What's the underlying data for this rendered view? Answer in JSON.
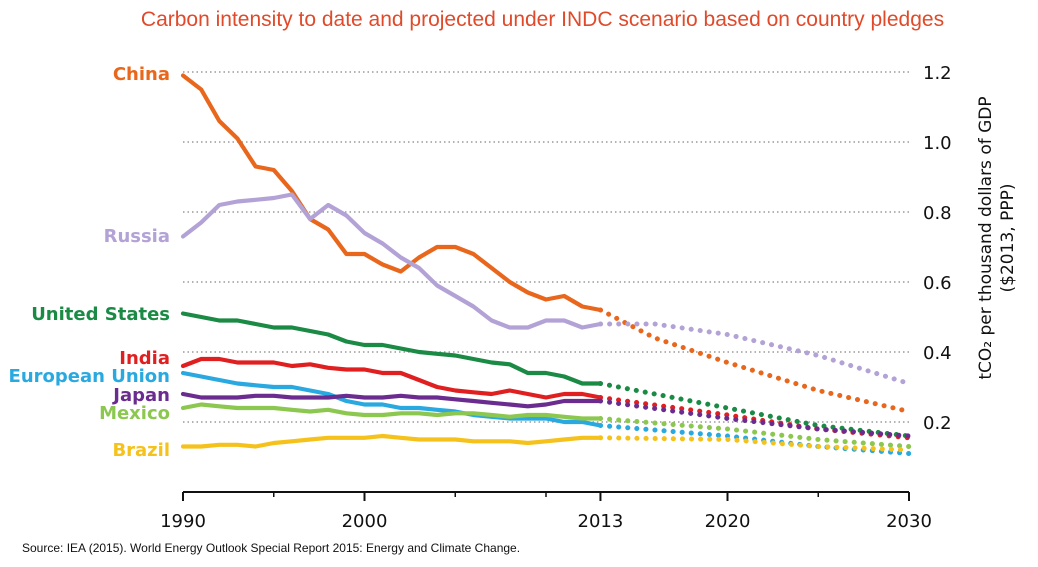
{
  "header": {
    "title": "Carbon intensity to date and projected under INDC scenario based on country pledges"
  },
  "footer": {
    "source": "Source: IEA (2015). World Energy Outlook Special Report 2015: Energy and Climate Change."
  },
  "chart_data": {
    "type": "line",
    "title": "Carbon intensity to date and projected under INDC scenario based on country pledges",
    "xlabel": "",
    "ylabel_line1": "tCO₂ per thousand dollars of GDP",
    "ylabel_line2": "($2013, PPP)",
    "xlim": [
      1990,
      2030
    ],
    "ylim": [
      0,
      1.2
    ],
    "x_ticks": [
      1990,
      2000,
      2013,
      2020,
      2030
    ],
    "x_minor_ticks": [
      1995,
      2005,
      2010,
      2025
    ],
    "y_ticks": [
      0.2,
      0.4,
      0.6,
      0.8,
      1.0,
      1.2
    ],
    "y_tick_labels": [
      "0.2",
      "0.4",
      "0.6",
      "0.8",
      "1.0",
      "1.2"
    ],
    "grid": true,
    "historical_style": "solid",
    "projection_style": "dotted",
    "series": [
      {
        "name": "China",
        "color": "#e8671c",
        "historical": {
          "x": [
            1990,
            1991,
            1992,
            1993,
            1994,
            1995,
            1996,
            1997,
            1998,
            1999,
            2000,
            2001,
            2002,
            2003,
            2004,
            2005,
            2006,
            2007,
            2008,
            2009,
            2010,
            2011,
            2012,
            2013
          ],
          "y": [
            1.19,
            1.15,
            1.06,
            1.01,
            0.93,
            0.92,
            0.86,
            0.78,
            0.75,
            0.68,
            0.68,
            0.65,
            0.63,
            0.67,
            0.7,
            0.7,
            0.68,
            0.64,
            0.6,
            0.57,
            0.55,
            0.56,
            0.53,
            0.52
          ]
        },
        "projection": {
          "x": [
            2013,
            2016,
            2020,
            2025,
            2030
          ],
          "y": [
            0.52,
            0.44,
            0.37,
            0.29,
            0.23
          ]
        }
      },
      {
        "name": "Russia",
        "color": "#b3a2d6",
        "historical": {
          "x": [
            1990,
            1991,
            1992,
            1993,
            1994,
            1995,
            1996,
            1997,
            1998,
            1999,
            2000,
            2001,
            2002,
            2003,
            2004,
            2005,
            2006,
            2007,
            2008,
            2009,
            2010,
            2011,
            2012,
            2013
          ],
          "y": [
            0.73,
            0.77,
            0.82,
            0.83,
            0.835,
            0.84,
            0.85,
            0.78,
            0.82,
            0.79,
            0.74,
            0.71,
            0.67,
            0.64,
            0.59,
            0.56,
            0.53,
            0.49,
            0.47,
            0.47,
            0.49,
            0.49,
            0.47,
            0.48
          ]
        },
        "projection": {
          "x": [
            2013,
            2016,
            2020,
            2025,
            2030
          ],
          "y": [
            0.48,
            0.48,
            0.45,
            0.39,
            0.31
          ]
        }
      },
      {
        "name": "United States",
        "color": "#1a8a45",
        "historical": {
          "x": [
            1990,
            1991,
            1992,
            1993,
            1994,
            1995,
            1996,
            1997,
            1998,
            1999,
            2000,
            2001,
            2002,
            2003,
            2004,
            2005,
            2006,
            2007,
            2008,
            2009,
            2010,
            2011,
            2012,
            2013
          ],
          "y": [
            0.51,
            0.5,
            0.49,
            0.49,
            0.48,
            0.47,
            0.47,
            0.46,
            0.45,
            0.43,
            0.42,
            0.42,
            0.41,
            0.4,
            0.395,
            0.39,
            0.38,
            0.37,
            0.365,
            0.34,
            0.34,
            0.33,
            0.31,
            0.31
          ]
        },
        "projection": {
          "x": [
            2013,
            2020,
            2025,
            2030
          ],
          "y": [
            0.31,
            0.24,
            0.19,
            0.16
          ]
        }
      },
      {
        "name": "India",
        "color": "#e02020",
        "historical": {
          "x": [
            1990,
            1991,
            1992,
            1993,
            1994,
            1995,
            1996,
            1997,
            1998,
            1999,
            2000,
            2001,
            2002,
            2003,
            2004,
            2005,
            2006,
            2007,
            2008,
            2009,
            2010,
            2011,
            2012,
            2013
          ],
          "y": [
            0.36,
            0.38,
            0.38,
            0.37,
            0.37,
            0.37,
            0.36,
            0.365,
            0.355,
            0.35,
            0.35,
            0.34,
            0.34,
            0.32,
            0.3,
            0.29,
            0.285,
            0.28,
            0.29,
            0.28,
            0.27,
            0.28,
            0.28,
            0.27
          ]
        },
        "projection": {
          "x": [
            2013,
            2020,
            2025,
            2030
          ],
          "y": [
            0.27,
            0.22,
            0.18,
            0.155
          ]
        }
      },
      {
        "name": "European Union",
        "color": "#29a9e0",
        "historical": {
          "x": [
            1990,
            1991,
            1992,
            1993,
            1994,
            1995,
            1996,
            1997,
            1998,
            1999,
            2000,
            2001,
            2002,
            2003,
            2004,
            2005,
            2006,
            2007,
            2008,
            2009,
            2010,
            2011,
            2012,
            2013
          ],
          "y": [
            0.34,
            0.33,
            0.32,
            0.31,
            0.305,
            0.3,
            0.3,
            0.29,
            0.28,
            0.26,
            0.25,
            0.25,
            0.24,
            0.24,
            0.235,
            0.23,
            0.22,
            0.215,
            0.21,
            0.21,
            0.21,
            0.2,
            0.2,
            0.19
          ]
        },
        "projection": {
          "x": [
            2013,
            2020,
            2025,
            2030
          ],
          "y": [
            0.19,
            0.16,
            0.13,
            0.11
          ]
        }
      },
      {
        "name": "Japan",
        "color": "#6a2d8f",
        "historical": {
          "x": [
            1990,
            1991,
            1992,
            1993,
            1994,
            1995,
            1996,
            1997,
            1998,
            1999,
            2000,
            2001,
            2002,
            2003,
            2004,
            2005,
            2006,
            2007,
            2008,
            2009,
            2010,
            2011,
            2012,
            2013
          ],
          "y": [
            0.28,
            0.27,
            0.27,
            0.27,
            0.275,
            0.275,
            0.27,
            0.27,
            0.27,
            0.275,
            0.27,
            0.27,
            0.275,
            0.27,
            0.27,
            0.265,
            0.26,
            0.255,
            0.25,
            0.245,
            0.25,
            0.26,
            0.26,
            0.26
          ]
        },
        "projection": {
          "x": [
            2013,
            2020,
            2025,
            2030
          ],
          "y": [
            0.26,
            0.21,
            0.18,
            0.16
          ]
        }
      },
      {
        "name": "Mexico",
        "color": "#8cc74f",
        "historical": {
          "x": [
            1990,
            1991,
            1992,
            1993,
            1994,
            1995,
            1996,
            1997,
            1998,
            1999,
            2000,
            2001,
            2002,
            2003,
            2004,
            2005,
            2006,
            2007,
            2008,
            2009,
            2010,
            2011,
            2012,
            2013
          ],
          "y": [
            0.24,
            0.25,
            0.245,
            0.24,
            0.24,
            0.24,
            0.235,
            0.23,
            0.235,
            0.225,
            0.22,
            0.22,
            0.225,
            0.225,
            0.22,
            0.225,
            0.225,
            0.22,
            0.215,
            0.22,
            0.22,
            0.215,
            0.21,
            0.21
          ]
        },
        "projection": {
          "x": [
            2013,
            2020,
            2025,
            2030
          ],
          "y": [
            0.21,
            0.18,
            0.15,
            0.13
          ]
        }
      },
      {
        "name": "Brazil",
        "color": "#f5c11b",
        "historical": {
          "x": [
            1990,
            1991,
            1992,
            1993,
            1994,
            1995,
            1996,
            1997,
            1998,
            1999,
            2000,
            2001,
            2002,
            2003,
            2004,
            2005,
            2006,
            2007,
            2008,
            2009,
            2010,
            2011,
            2012,
            2013
          ],
          "y": [
            0.13,
            0.13,
            0.135,
            0.135,
            0.13,
            0.14,
            0.145,
            0.15,
            0.155,
            0.155,
            0.155,
            0.16,
            0.155,
            0.15,
            0.15,
            0.15,
            0.145,
            0.145,
            0.145,
            0.14,
            0.145,
            0.15,
            0.155,
            0.155
          ]
        },
        "projection": {
          "x": [
            2013,
            2020,
            2025,
            2030
          ],
          "y": [
            0.155,
            0.15,
            0.13,
            0.12
          ]
        }
      }
    ],
    "country_labels": [
      {
        "name": "China",
        "value": 1.19
      },
      {
        "name": "Russia",
        "value": 0.73
      },
      {
        "name": "United States",
        "value": 0.51
      },
      {
        "name": "India",
        "value": 0.38
      },
      {
        "name": "European Union",
        "value": 0.34
      },
      {
        "name": "Japan",
        "value": 0.28
      },
      {
        "name": "Mexico",
        "value": 0.23
      },
      {
        "name": "Brazil",
        "value": 0.13
      }
    ]
  }
}
